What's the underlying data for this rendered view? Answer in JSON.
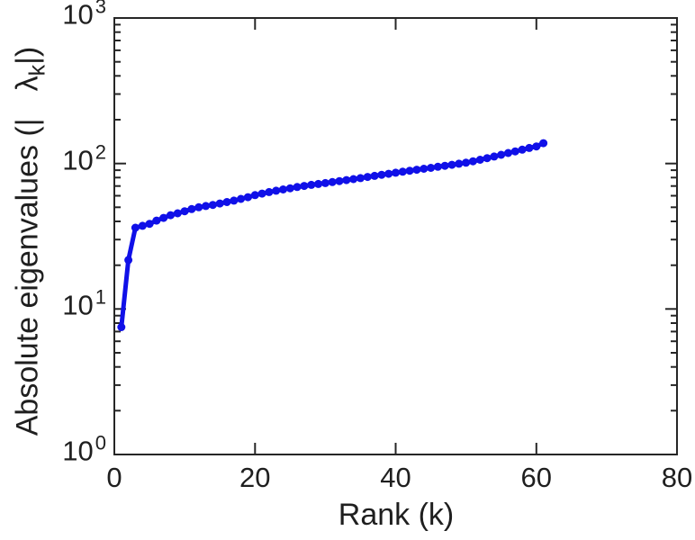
{
  "figure": {
    "background": "#ffffff"
  },
  "chart_data": {
    "type": "line",
    "yscale": "log",
    "title": "",
    "xlabel": "Rank (k)",
    "ylabel": "Absolute eigenvalues (|λ_k|)",
    "ylabel_parts": {
      "prefix": "Absolute eigenvalues (|",
      "lambda": "λ",
      "sub": "k",
      "suffix": "|)"
    },
    "xlim": [
      0,
      80
    ],
    "ylim": [
      1,
      1000
    ],
    "ylim_log10": [
      0,
      3
    ],
    "x_ticks": [
      0,
      20,
      40,
      60,
      80
    ],
    "y_ticks": [
      {
        "base": "10",
        "exp": "0"
      },
      {
        "base": "10",
        "exp": "1"
      },
      {
        "base": "10",
        "exp": "2"
      },
      {
        "base": "10",
        "exp": "3"
      }
    ],
    "y_minor_ticks": true,
    "grid": false,
    "legend": null,
    "box": true,
    "line_color": "#1010e8",
    "axis_color": "#262626",
    "text_color": "#1f1f1f",
    "marker": "filled-circle",
    "series": [
      {
        "name": "absolute-eigenvalues",
        "x": [
          1,
          2,
          3,
          4,
          5,
          6,
          7,
          8,
          9,
          10,
          11,
          12,
          13,
          14,
          15,
          16,
          17,
          18,
          19,
          20,
          21,
          22,
          23,
          24,
          25,
          26,
          27,
          28,
          29,
          30,
          31,
          32,
          33,
          34,
          35,
          36,
          37,
          38,
          39,
          40,
          41,
          42,
          43,
          44,
          45,
          46,
          47,
          48,
          49,
          50,
          51,
          52,
          53,
          54,
          55,
          56,
          57,
          58,
          59,
          60,
          61
        ],
        "values": [
          7.5,
          21.7,
          36.2,
          37.3,
          38.5,
          40.5,
          42.3,
          44.1,
          45.5,
          47.0,
          48.6,
          50.0,
          51.0,
          51.9,
          53.1,
          54.3,
          55.6,
          57.1,
          58.7,
          60.6,
          62.1,
          63.6,
          65.0,
          66.3,
          67.6,
          68.9,
          70.1,
          71.3,
          72.3,
          73.4,
          74.5,
          75.7,
          76.9,
          78.1,
          79.4,
          80.8,
          82.2,
          83.6,
          85.0,
          86.4,
          87.8,
          89.2,
          90.6,
          92.0,
          93.4,
          94.9,
          96.4,
          98.0,
          99.6,
          101.3,
          103.6,
          106.1,
          108.8,
          111.7,
          114.8,
          118.0,
          121.2,
          124.5,
          127.8,
          131.0,
          138.0
        ]
      }
    ]
  }
}
